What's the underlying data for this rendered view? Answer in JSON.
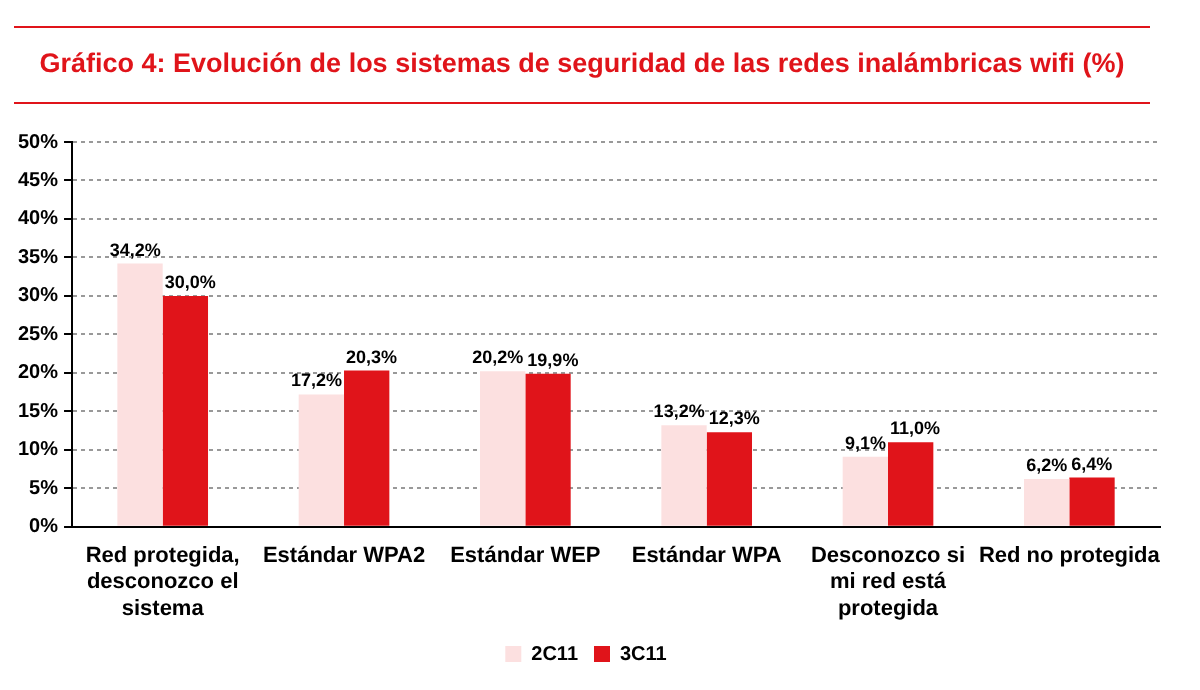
{
  "chart_data": {
    "type": "bar",
    "title": "Gráfico 4: Evolución de los sistemas de seguridad de las redes inalámbricas wifi (%)",
    "categories": [
      "Red protegida, desconozco el sistema",
      "Estándar WPA2",
      "Estándar WEP",
      "Estándar WPA",
      "Desconozco si mi red está protegida",
      "Red no protegida"
    ],
    "series": [
      {
        "name": "2C11",
        "color": "#fce0e0",
        "values": [
          34.2,
          17.2,
          20.2,
          13.2,
          9.1,
          6.2
        ],
        "value_labels": [
          "34,2%",
          "17,2%",
          "20,2%",
          "13,2%",
          "9,1%",
          "6,2%"
        ]
      },
      {
        "name": "3C11",
        "color": "#e0141a",
        "values": [
          30.0,
          20.3,
          19.9,
          12.3,
          11.0,
          6.4
        ],
        "value_labels": [
          "30,0%",
          "20,3%",
          "19,9%",
          "12,3%",
          "11,0%",
          "6,4%"
        ]
      }
    ],
    "ylim": [
      0,
      50
    ],
    "yticks": [
      {
        "value": 0,
        "label": "0%"
      },
      {
        "value": 5,
        "label": "5%"
      },
      {
        "value": 10,
        "label": "10%"
      },
      {
        "value": 15,
        "label": "15%"
      },
      {
        "value": 20,
        "label": "20%"
      },
      {
        "value": 25,
        "label": "25%"
      },
      {
        "value": 30,
        "label": "30%"
      },
      {
        "value": 35,
        "label": "35%"
      },
      {
        "value": 40,
        "label": "40%"
      },
      {
        "value": 45,
        "label": "45%"
      },
      {
        "value": 50,
        "label": "50%"
      }
    ],
    "grid": "y",
    "legend": "bottom"
  }
}
